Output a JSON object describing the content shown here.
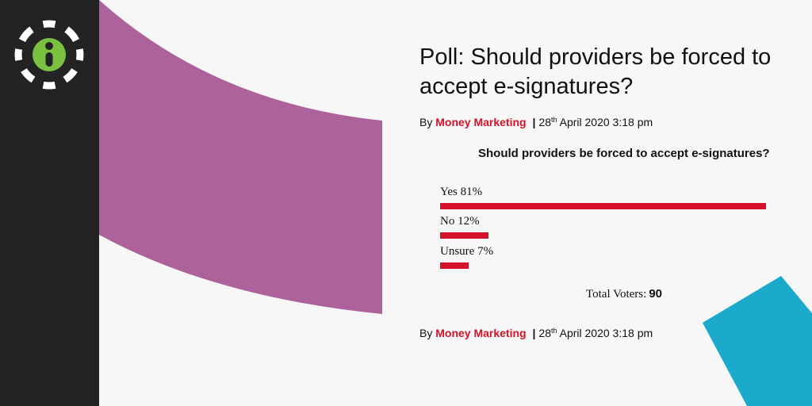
{
  "colors": {
    "sidebar": "#232323",
    "accent_red": "#d6102a",
    "deco_purple": "#ad629c",
    "deco_blue": "#1ba9cc",
    "logo_green": "#7ac142"
  },
  "logo": {
    "icon": "info-icon"
  },
  "article": {
    "title": "Poll: Should providers be forced to accept e-signatures?",
    "byline": {
      "by": "By",
      "author": "Money Marketing",
      "separator": "|",
      "day": "28",
      "day_suffix": "th",
      "date_rest": "April 2020 3:18 pm"
    }
  },
  "poll": {
    "question": "Should providers be forced to accept e-signatures?",
    "options": [
      {
        "label": "Yes 81%",
        "percent": 81
      },
      {
        "label": "No 12%",
        "percent": 12
      },
      {
        "label": "Unsure 7%",
        "percent": 7
      }
    ],
    "total_label": "Total Voters:",
    "total_value": "90"
  }
}
